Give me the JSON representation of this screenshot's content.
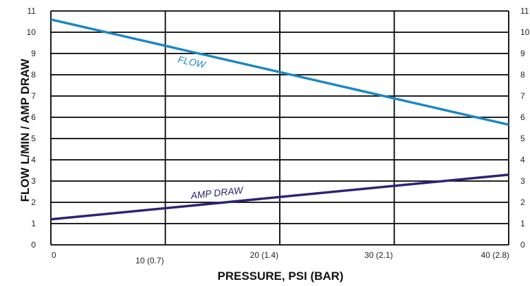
{
  "chart_data": {
    "type": "line",
    "xlabel": "PRESSURE, PSI (BAR)",
    "ylabel": "FLOW L/MIN / AMP DRAW",
    "xlim": [
      0,
      40
    ],
    "ylim": [
      0,
      11
    ],
    "x_ticks": [
      {
        "value": 0,
        "label": "0"
      },
      {
        "value": 10,
        "label": "10 (0.7)"
      },
      {
        "value": 20,
        "label": "20 (1.4)"
      },
      {
        "value": 30,
        "label": "30 (2.1)"
      },
      {
        "value": 40,
        "label": "40 (2.8)"
      }
    ],
    "y_ticks": [
      0,
      1,
      2,
      3,
      4,
      5,
      6,
      7,
      8,
      9,
      10,
      11
    ],
    "grid": true,
    "series": [
      {
        "name": "FLOW",
        "color": "#1a87c5",
        "x": [
          0,
          40
        ],
        "values": [
          10.6,
          5.65
        ]
      },
      {
        "name": "AMP DRAW",
        "color": "#2c2474",
        "x": [
          0,
          40
        ],
        "values": [
          1.2,
          3.3
        ]
      }
    ]
  }
}
